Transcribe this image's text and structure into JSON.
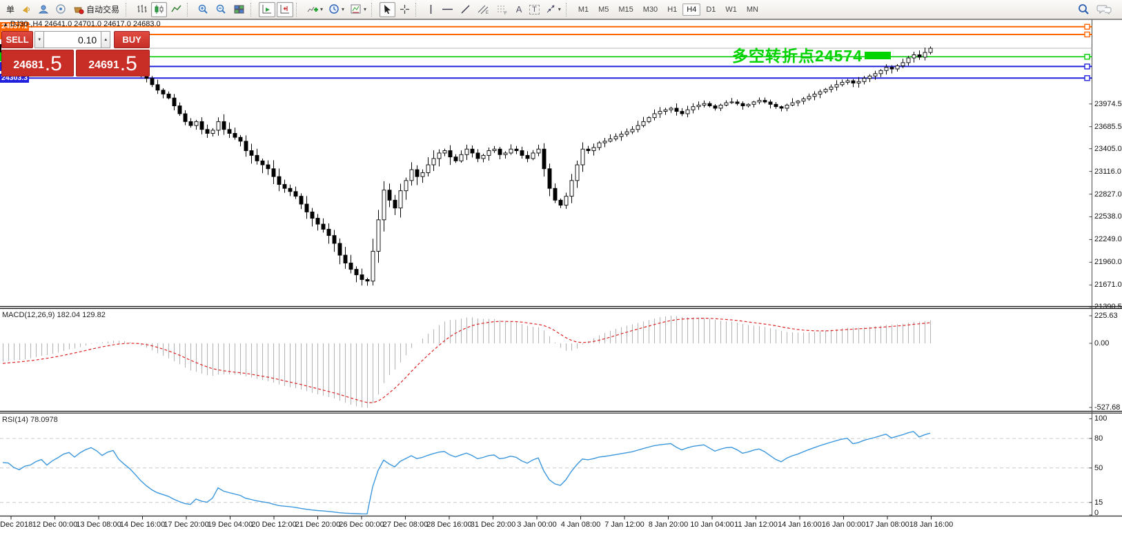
{
  "toolbar": {
    "new_order_partial": "单",
    "autotrade_label": "自动交易",
    "text_tool_label": "A",
    "label_tool_label": "T",
    "timeframes": [
      "M1",
      "M5",
      "M15",
      "M30",
      "H1",
      "H4",
      "D1",
      "W1",
      "MN"
    ],
    "active_timeframe": "H4"
  },
  "symbol_info": {
    "marker": "▲",
    "text": "DJ30-,H4  24641.0 24701.0 24617.0 24683.0"
  },
  "trade_panel": {
    "sell_label": "SELL",
    "buy_label": "BUY",
    "volume": "0.10",
    "sell_price_main": "24681",
    "sell_price_frac": ".5",
    "buy_price_main": "24691",
    "buy_price_frac": ".5"
  },
  "annotation": {
    "text": "多空转折点24574",
    "color": "#00d300",
    "box_color": "#00d300"
  },
  "price_lines": [
    {
      "label": "24957.1",
      "price": 24957.1,
      "color": "#ff6600",
      "width": 2,
      "current": false
    },
    {
      "label": "24858.6",
      "price": 24858.6,
      "color": "#ff6600",
      "width": 2,
      "current": false
    },
    {
      "label": "24683.0",
      "price": 24683.0,
      "color": "#b5b5b5",
      "width": 1,
      "current": true,
      "label_bg": "#000000"
    },
    {
      "label": "24574.8",
      "price": 24574.8,
      "color": "#00cc00",
      "width": 1.6,
      "current": false
    },
    {
      "label": "24451.3",
      "price": 24451.3,
      "color": "#2121dd",
      "width": 2,
      "current": false
    },
    {
      "label": "24303.3",
      "price": 24303.3,
      "color": "#2121dd",
      "width": 2,
      "current": false
    }
  ],
  "chart_data": {
    "type": "candlestick",
    "symbol": "DJ30-",
    "period": "H4",
    "ohlc_display": [
      24641.0,
      24701.0,
      24617.0,
      24683.0
    ],
    "y_ticks": [
      {
        "label": "23974.5",
        "price": 23974.5
      },
      {
        "label": "23685.5",
        "price": 23685.5
      },
      {
        "label": "23405.0",
        "price": 23405.0
      },
      {
        "label": "23116.0",
        "price": 23116.0
      },
      {
        "label": "22827.0",
        "price": 22827.0
      },
      {
        "label": "22538.0",
        "price": 22538.0
      },
      {
        "label": "22249.0",
        "price": 22249.0
      },
      {
        "label": "21960.0",
        "price": 21960.0
      },
      {
        "label": "21671.0",
        "price": 21671.0
      },
      {
        "label": "21390.5",
        "price": 21390.5
      }
    ],
    "x_labels": [
      "10 Dec 2018",
      "12 Dec 00:00",
      "13 Dec 08:00",
      "14 Dec 16:00",
      "17 Dec 20:00",
      "19 Dec 04:00",
      "20 Dec 12:00",
      "21 Dec 20:00",
      "26 Dec 00:00",
      "27 Dec 08:00",
      "28 Dec 16:00",
      "31 Dec 20:00",
      "3 Jan 00:00",
      "4 Jan 08:00",
      "7 Jan 12:00",
      "8 Jan 20:00",
      "10 Jan 04:00",
      "11 Jan 12:00",
      "14 Jan 16:00",
      "16 Jan 00:00",
      "17 Jan 08:00",
      "18 Jan 16:00"
    ],
    "closes": [
      24440,
      24436,
      24400,
      24380,
      24410,
      24420,
      24450,
      24470,
      24430,
      24470,
      24500,
      24540,
      24560,
      24530,
      24580,
      24620,
      24650,
      24630,
      24600,
      24640,
      24660,
      24600,
      24560,
      24520,
      24460,
      24380,
      24300,
      24220,
      24150,
      24101,
      24050,
      23950,
      23850,
      23750,
      23700,
      23750,
      23650,
      23600,
      23640,
      23750,
      23650,
      23600,
      23550,
      23500,
      23380,
      23320,
      23250,
      23200,
      23150,
      23050,
      22950,
      22900,
      22860,
      22800,
      22700,
      22600,
      22520,
      22445,
      22380,
      22300,
      22200,
      22050,
      21950,
      21870,
      21800,
      21740,
      21720,
      22100,
      22500,
      22878,
      22750,
      22650,
      22870,
      23000,
      23138,
      23050,
      23100,
      23200,
      23280,
      23350,
      23380,
      23300,
      23250,
      23330,
      23400,
      23350,
      23280,
      23320,
      23380,
      23400,
      23330,
      23350,
      23400,
      23380,
      23320,
      23280,
      23350,
      23400,
      23150,
      22900,
      22750,
      22686,
      22800,
      23000,
      23200,
      23400,
      23380,
      23420,
      23480,
      23500,
      23530,
      23560,
      23590,
      23620,
      23650,
      23700,
      23750,
      23800,
      23850,
      23880,
      23900,
      23920,
      23880,
      23850,
      23900,
      23940,
      23960,
      23980,
      23950,
      23920,
      23960,
      23990,
      24000,
      23980,
      23950,
      23970,
      24000,
      24020,
      24000,
      23970,
      23940,
      23920,
      23960,
      23990,
      24010,
      24040,
      24070,
      24100,
      24130,
      24160,
      24190,
      24220,
      24250,
      24270,
      24240,
      24260,
      24300,
      24330,
      24360,
      24400,
      24440,
      24420,
      24460,
      24500,
      24560,
      24600,
      24570,
      24630,
      24683
    ],
    "candle_up_fill": "#ffffff",
    "candle_down_fill": "#000000",
    "candle_stroke": "#000000",
    "macd": {
      "label": "MACD(12,26,9) 182.04 129.82",
      "params": [
        12,
        26,
        9
      ],
      "value": 182.04,
      "signal_value": 129.82,
      "axis": [
        {
          "label": "225.63",
          "v": 225.63
        },
        {
          "label": "0.00",
          "v": 0
        },
        {
          "label": "-527.68",
          "v": -527.68
        }
      ],
      "hist_color": "#b4b4b4",
      "signal_color": "#dd2222"
    },
    "rsi": {
      "label": "RSI(14) 78.0978",
      "period": 14,
      "value": 78.0978,
      "levels": [
        {
          "label": "100",
          "v": 100,
          "dashed": false
        },
        {
          "label": "80",
          "v": 80,
          "dashed": true
        },
        {
          "label": "50",
          "v": 50,
          "dashed": true
        },
        {
          "label": "15",
          "v": 15,
          "dashed": true
        },
        {
          "label": "0",
          "v": 0,
          "dashed": false
        }
      ],
      "line_color": "#3a96dd"
    }
  }
}
